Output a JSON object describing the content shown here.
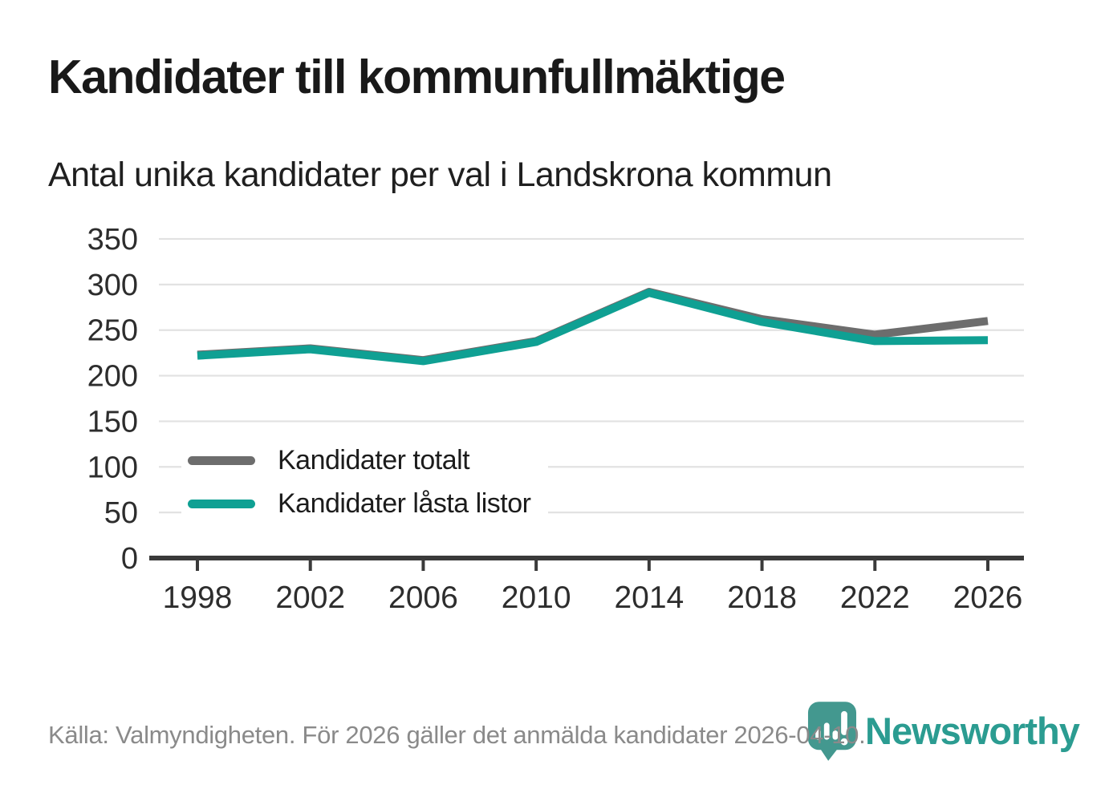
{
  "title": "Kandidater till kommunfullmäktige",
  "subtitle": "Antal unika kandidater per val i Landskrona kommun",
  "source": "Källa: Valmyndigheten. För 2026 gäller det anmälda kandidater 2026-04-10.",
  "brand": {
    "name": "Newsworthy",
    "wordmark_color": "#2b9c91",
    "pin_color": "#43988f",
    "pin_icon": "bar-chart-exclamation-pin"
  },
  "colors": {
    "grid": "#e2e2e2",
    "axis": "#3a3a3a",
    "tick_label": "#2d2d2d"
  },
  "chart_data": {
    "type": "line",
    "x": [
      1998,
      2002,
      2006,
      2010,
      2014,
      2018,
      2022,
      2026
    ],
    "series": [
      {
        "name": "Kandidater totalt",
        "color": "#6d6d6d",
        "values": [
          223,
          230,
          217,
          238,
          292,
          262,
          245,
          260
        ]
      },
      {
        "name": "Kandidater låsta listor",
        "color": "#0fa093",
        "values": [
          222,
          229,
          216,
          237,
          291,
          259,
          238,
          239
        ]
      }
    ],
    "title": "Kandidater till kommunfullmäktige",
    "subtitle": "Antal unika kandidater per val i Landskrona kommun",
    "xlabel": "",
    "ylabel": "",
    "ylim": [
      0,
      350
    ],
    "ytick_step": 50,
    "grid": true,
    "legend_position": "inside-lower-left"
  }
}
